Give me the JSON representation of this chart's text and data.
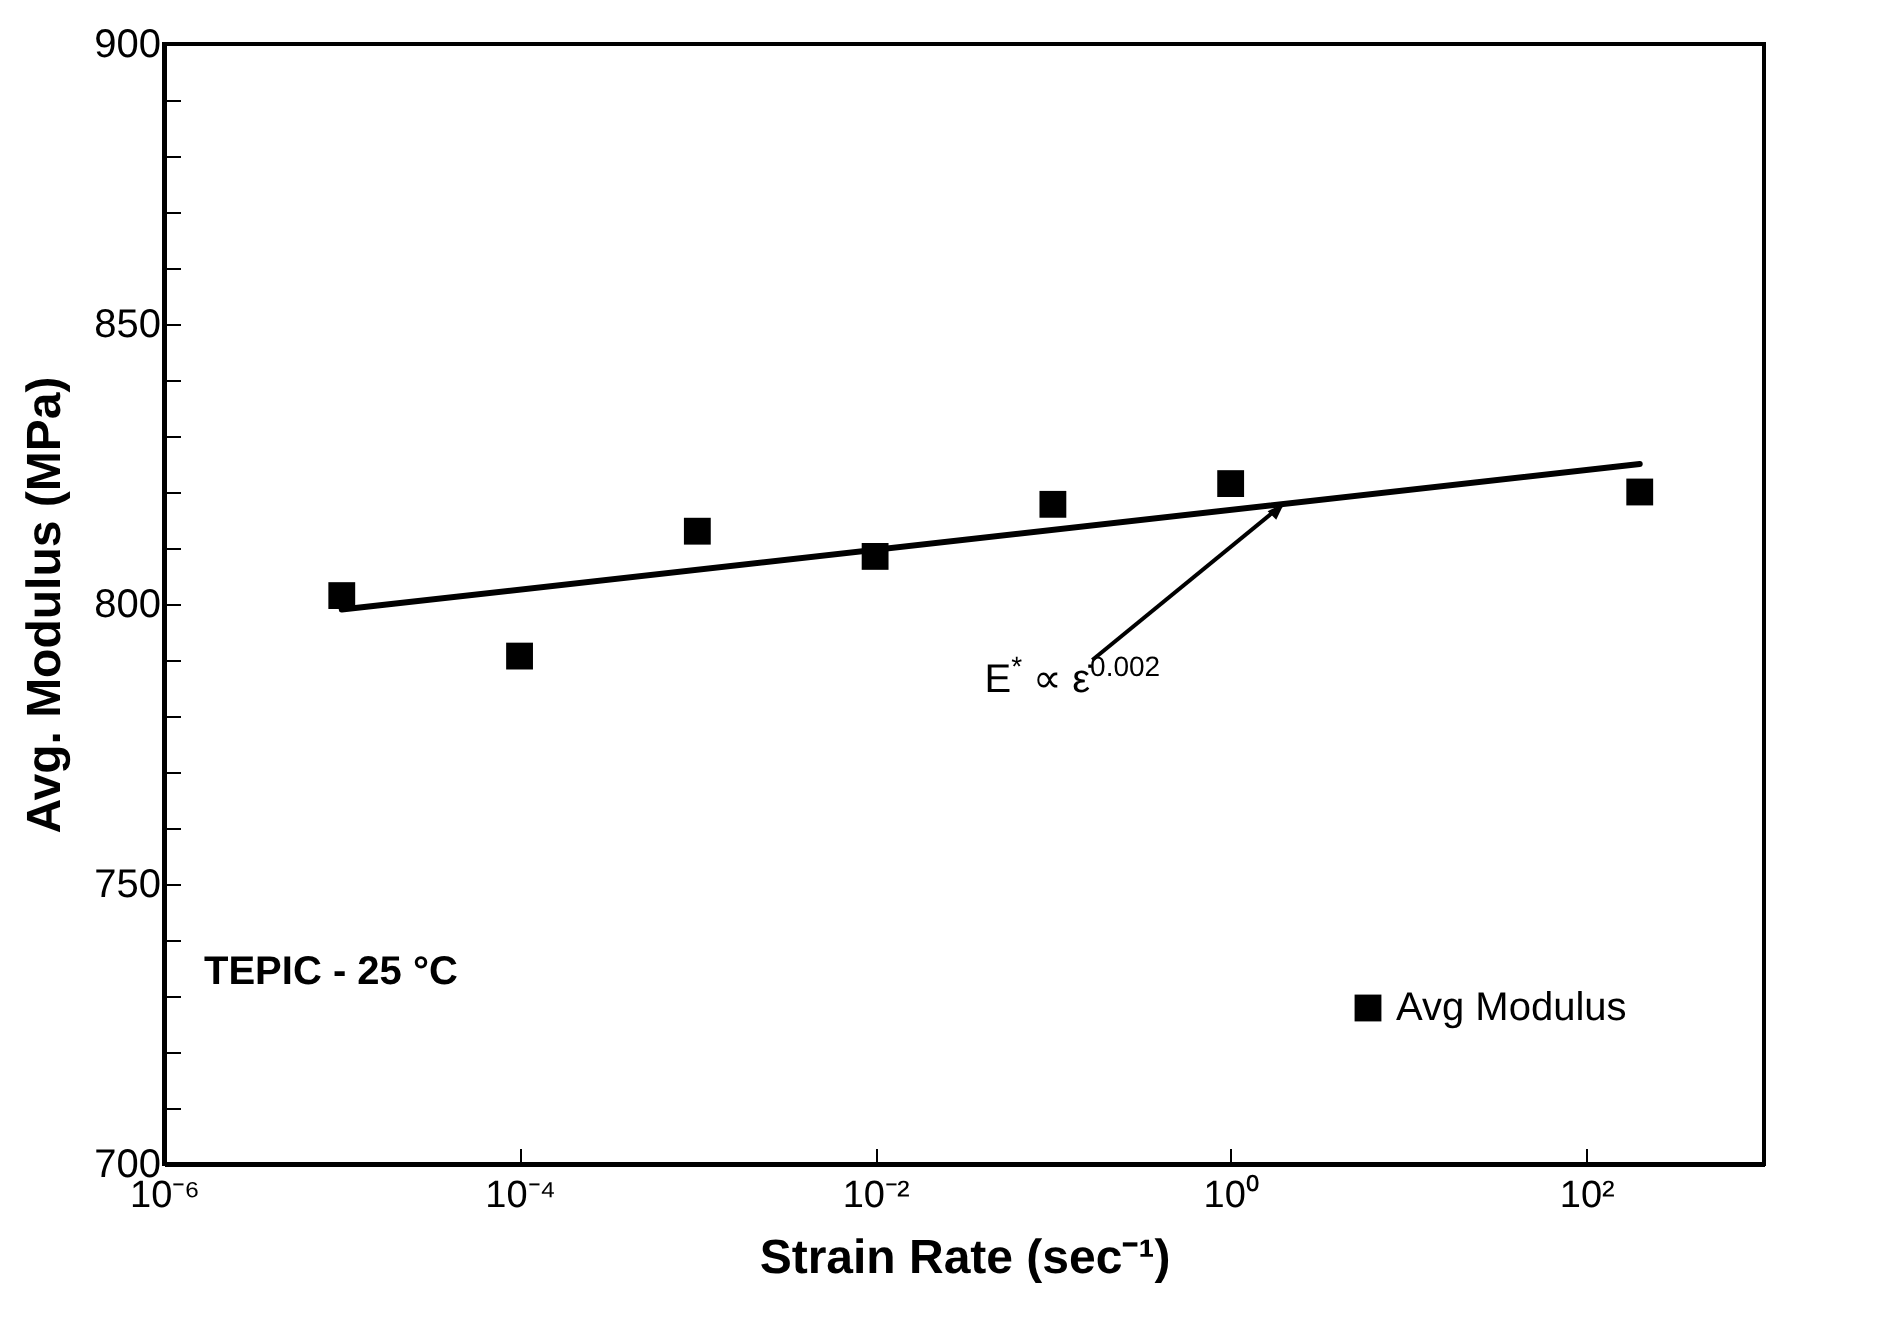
{
  "chart_data": {
    "type": "line",
    "xlabel": "Strain Rate (sec⁻¹)",
    "ylabel": "Avg. Modulus (MPa)",
    "log": "x",
    "xlim": [
      1e-06,
      1000
    ],
    "ylim": [
      700,
      900
    ],
    "xticks": [
      {
        "value": 1e-06,
        "label": "10⁻⁶"
      },
      {
        "value": 0.0001,
        "label": "10⁻⁴"
      },
      {
        "value": 0.01,
        "label": "10⁻²"
      },
      {
        "value": 1,
        "label": "10⁰"
      },
      {
        "value": 100,
        "label": "10²"
      }
    ],
    "yticks": [
      700,
      {
        "value": 710,
        "label": null
      },
      {
        "value": 720,
        "label": null
      },
      {
        "value": 730,
        "label": null
      },
      {
        "value": 740,
        "label": null
      },
      750,
      {
        "value": 760,
        "label": null
      },
      {
        "value": 770,
        "label": null
      },
      {
        "value": 780,
        "label": null
      },
      {
        "value": 790,
        "label": null
      },
      800,
      {
        "value": 810,
        "label": null
      },
      {
        "value": 820,
        "label": null
      },
      {
        "value": 830,
        "label": null
      },
      {
        "value": 840,
        "label": null
      },
      850,
      {
        "value": 860,
        "label": null
      },
      {
        "value": 870,
        "label": null
      },
      {
        "value": 880,
        "label": null
      },
      {
        "value": 890,
        "label": null
      },
      900
    ],
    "grid": false,
    "legend": "bottom right",
    "marker": "square",
    "series": [
      {
        "name": "Avg Modulus",
        "type": "scatter",
        "color": "#000000",
        "x": [
          1e-05,
          0.0001,
          0.001,
          0.01,
          0.1,
          1,
          200
        ],
        "values": [
          801.5,
          790.7,
          813,
          808.5,
          817.8,
          821.5,
          820
        ]
      },
      {
        "color": "#000000",
        "marker": "none",
        "x": [
          1e-05,
          200
        ],
        "values": [
          799,
          825
        ]
      }
    ],
    "annotations": [
      "TEPIC - 25 °C",
      {
        "text": "E$^{*}$ ∝ ε̇$^{0.002}$",
        "x": 2,
        "y": 818
      }
    ]
  }
}
